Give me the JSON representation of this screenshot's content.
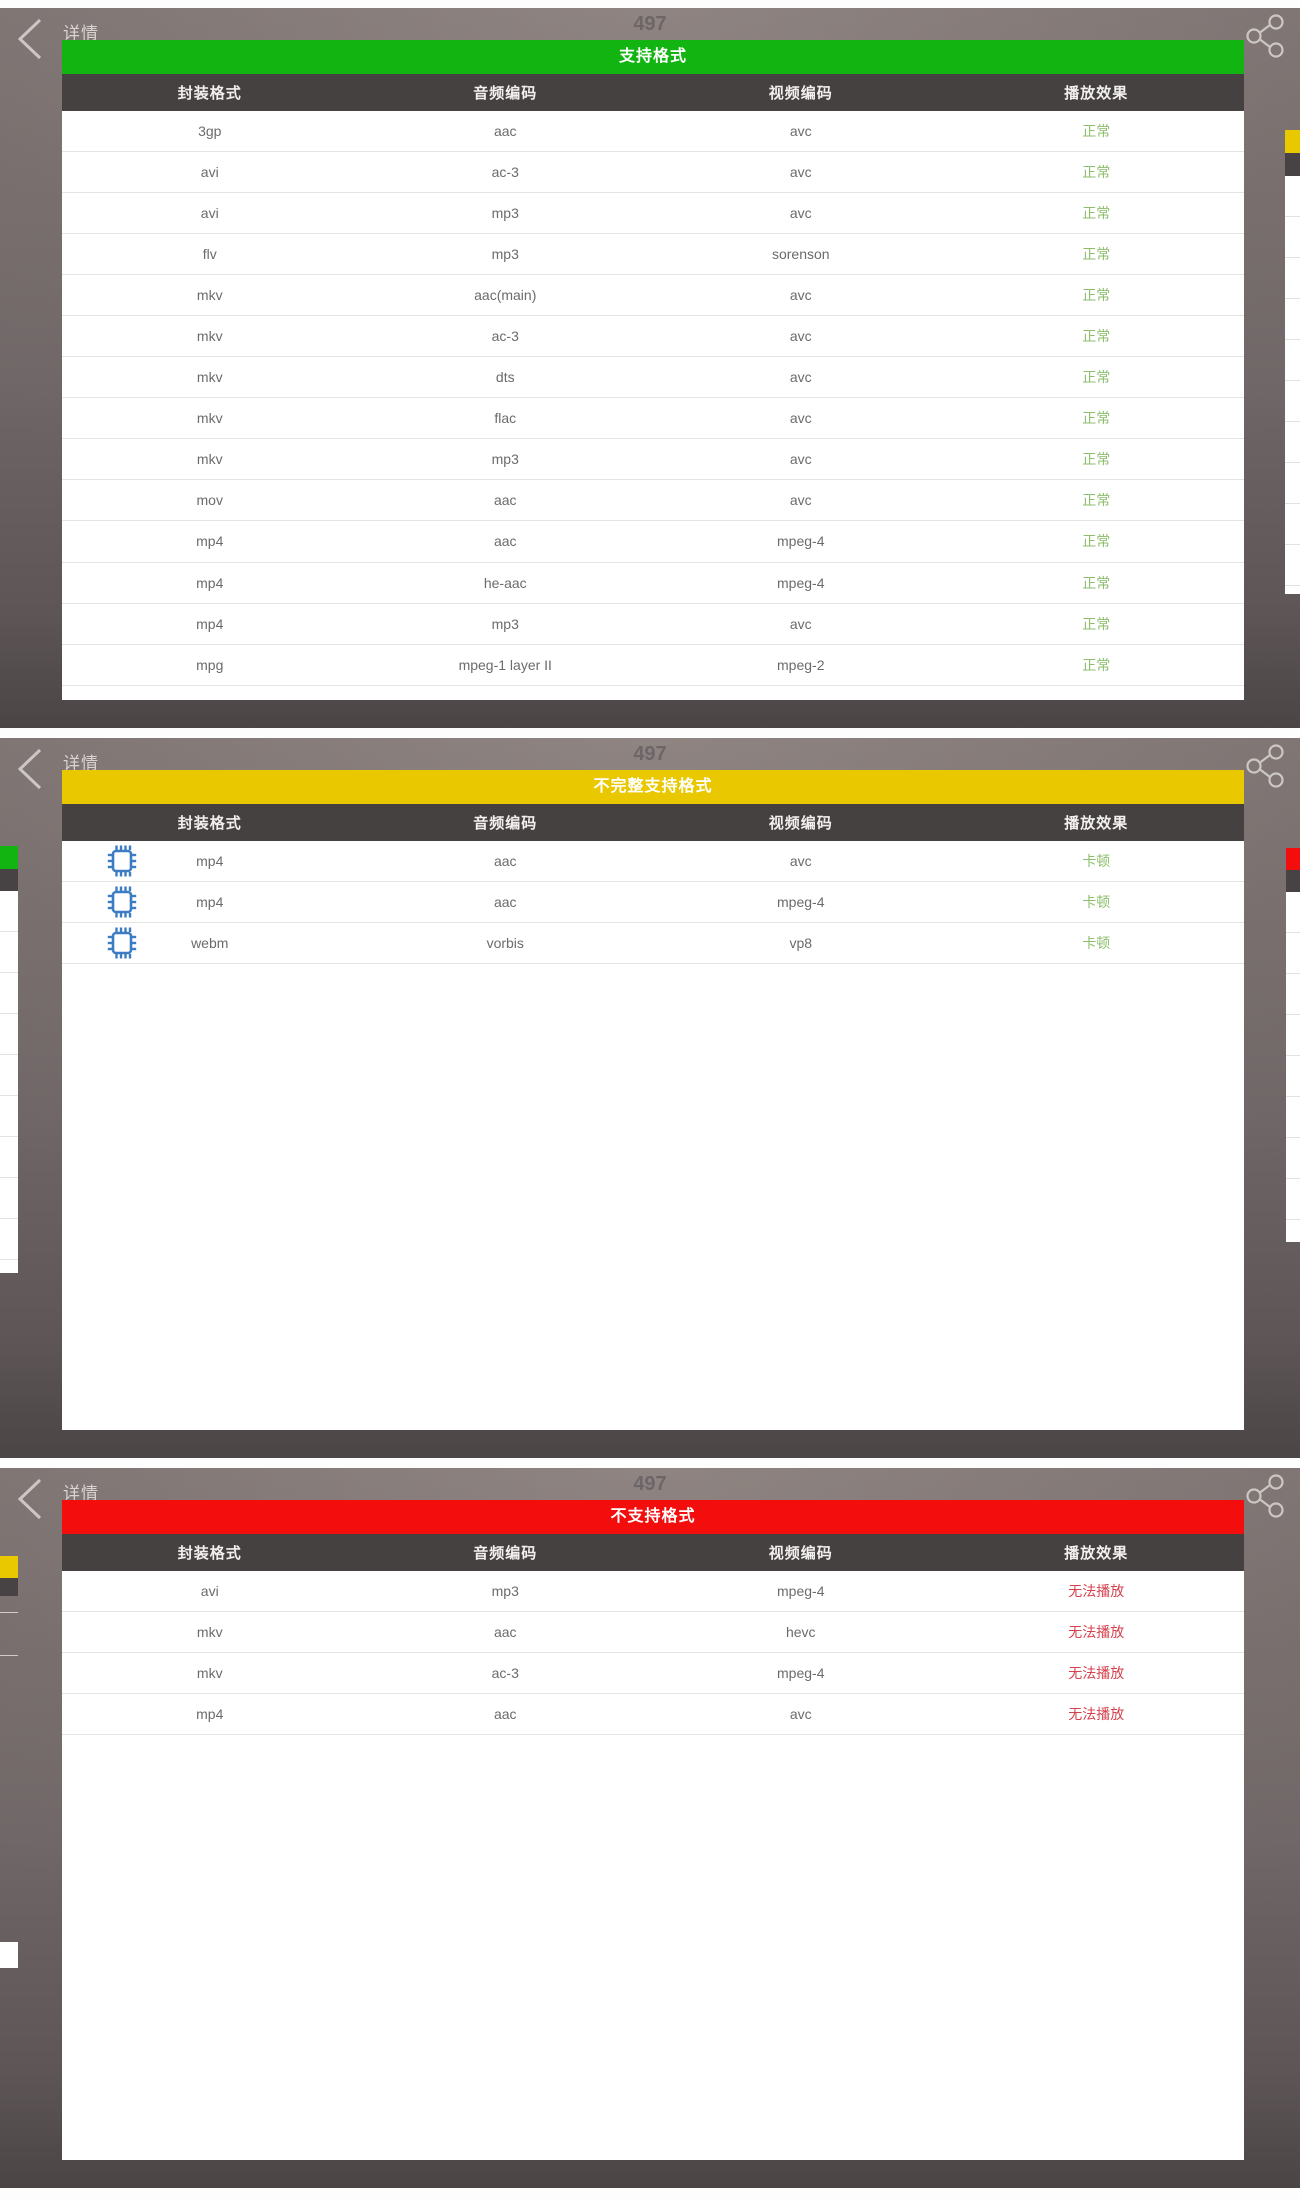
{
  "nav": {
    "back_label": "详情",
    "page_number": "497"
  },
  "columns": [
    "封装格式",
    "音频编码",
    "视频编码",
    "播放效果"
  ],
  "colors": {
    "green": "#11b411",
    "yellow": "#e9c800",
    "red": "#f30d0d",
    "status_green": "#8cbe6c",
    "status_red": "#d5414d",
    "header_bg": "#454140",
    "chip_blue": "#3b7cc2"
  },
  "sections": [
    {
      "banner": "支持格式",
      "banner_color": "#11b411",
      "status_color": "#8cbe6c",
      "row_icon": "",
      "rows": [
        [
          "3gp",
          "aac",
          "avc",
          "正常"
        ],
        [
          "avi",
          "ac-3",
          "avc",
          "正常"
        ],
        [
          "avi",
          "mp3",
          "avc",
          "正常"
        ],
        [
          "flv",
          "mp3",
          "sorenson",
          "正常"
        ],
        [
          "mkv",
          "aac(main)",
          "avc",
          "正常"
        ],
        [
          "mkv",
          "ac-3",
          "avc",
          "正常"
        ],
        [
          "mkv",
          "dts",
          "avc",
          "正常"
        ],
        [
          "mkv",
          "flac",
          "avc",
          "正常"
        ],
        [
          "mkv",
          "mp3",
          "avc",
          "正常"
        ],
        [
          "mov",
          "aac",
          "avc",
          "正常"
        ],
        [
          "mp4",
          "aac",
          "mpeg-4",
          "正常"
        ],
        [
          "mp4",
          "he-aac",
          "mpeg-4",
          "正常"
        ],
        [
          "mp4",
          "mp3",
          "avc",
          "正常"
        ],
        [
          "mpg",
          "mpeg-1 layer II",
          "mpeg-2",
          "正常"
        ]
      ]
    },
    {
      "banner": "不完整支持格式",
      "banner_color": "#e9c800",
      "status_color": "#8cbe6c",
      "row_icon": "chip",
      "rows": [
        [
          "mp4",
          "aac",
          "avc",
          "卡顿"
        ],
        [
          "mp4",
          "aac",
          "mpeg-4",
          "卡顿"
        ],
        [
          "webm",
          "vorbis",
          "vp8",
          "卡顿"
        ]
      ]
    },
    {
      "banner": "不支持格式",
      "banner_color": "#f30d0d",
      "status_color": "#d5414d",
      "row_icon": "",
      "rows": [
        [
          "avi",
          "mp3",
          "mpeg-4",
          "无法播放"
        ],
        [
          "mkv",
          "aac",
          "hevc",
          "无法播放"
        ],
        [
          "mkv",
          "ac-3",
          "mpeg-4",
          "无法播放"
        ],
        [
          "mp4",
          "aac",
          "avc",
          "无法播放"
        ]
      ]
    }
  ]
}
